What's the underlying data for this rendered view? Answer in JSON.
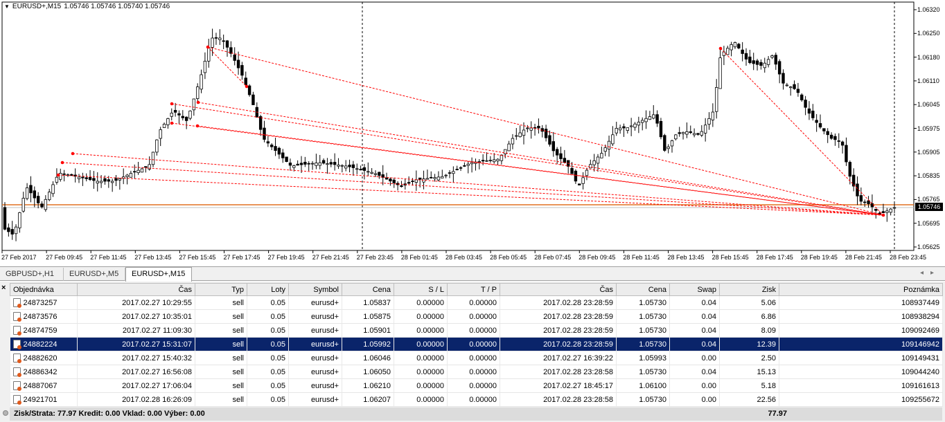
{
  "chart": {
    "symbol": "EURUSD+,M15",
    "ohlc": "1.05746 1.05746 1.05740 1.05746",
    "current_price": "1.05746",
    "price_labels": [
      "1.06320",
      "1.06250",
      "1.06180",
      "1.06110",
      "1.06045",
      "1.05975",
      "1.05905",
      "1.05835",
      "1.05765",
      "1.05695",
      "1.05625"
    ],
    "time_labels": [
      "27 Feb 2017",
      "27 Feb 09:45",
      "27 Feb 11:45",
      "27 Feb 13:45",
      "27 Feb 15:45",
      "27 Feb 17:45",
      "27 Feb 19:45",
      "27 Feb 21:45",
      "27 Feb 23:45",
      "28 Feb 01:45",
      "28 Feb 03:45",
      "28 Feb 05:45",
      "28 Feb 07:45",
      "28 Feb 09:45",
      "28 Feb 11:45",
      "28 Feb 13:45",
      "28 Feb 15:45",
      "28 Feb 17:45",
      "28 Feb 19:45",
      "28 Feb 21:45",
      "28 Feb 23:45"
    ],
    "colors": {
      "bid_line": "#c0c0c0",
      "ask_line": "#e07020",
      "trade_line": "#ff0000",
      "candle": "#000000"
    }
  },
  "tabs": [
    {
      "label": "GBPUSD+,H1",
      "active": false
    },
    {
      "label": "EURUSD+,M5",
      "active": false
    },
    {
      "label": "EURUSD+,M15",
      "active": true
    }
  ],
  "table": {
    "columns": [
      "Objednávka",
      "Čas",
      "Typ",
      "Loty",
      "Symbol",
      "Cena",
      "S / L",
      "T / P",
      "Čas",
      "Cena",
      "Swap",
      "Zisk",
      "Poznámka"
    ],
    "rows": [
      [
        "24873257",
        "2017.02.27 10:29:55",
        "sell",
        "0.05",
        "eurusd+",
        "1.05837",
        "0.00000",
        "0.00000",
        "2017.02.28 23:28:59",
        "1.05730",
        "0.04",
        "5.06",
        "108937449"
      ],
      [
        "24873576",
        "2017.02.27 10:35:01",
        "sell",
        "0.05",
        "eurusd+",
        "1.05875",
        "0.00000",
        "0.00000",
        "2017.02.28 23:28:59",
        "1.05730",
        "0.04",
        "6.86",
        "108938294"
      ],
      [
        "24874759",
        "2017.02.27 11:09:30",
        "sell",
        "0.05",
        "eurusd+",
        "1.05901",
        "0.00000",
        "0.00000",
        "2017.02.28 23:28:59",
        "1.05730",
        "0.04",
        "8.09",
        "109092469"
      ],
      [
        "24882224",
        "2017.02.27 15:31:07",
        "sell",
        "0.05",
        "eurusd+",
        "1.05992",
        "0.00000",
        "0.00000",
        "2017.02.28 23:28:59",
        "1.05730",
        "0.04",
        "12.39",
        "109146942"
      ],
      [
        "24882620",
        "2017.02.27 15:40:32",
        "sell",
        "0.05",
        "eurusd+",
        "1.06046",
        "0.00000",
        "0.00000",
        "2017.02.27 16:39:22",
        "1.05993",
        "0.00",
        "2.50",
        "109149431"
      ],
      [
        "24886342",
        "2017.02.27 16:56:08",
        "sell",
        "0.05",
        "eurusd+",
        "1.06050",
        "0.00000",
        "0.00000",
        "2017.02.28 23:28:58",
        "1.05730",
        "0.04",
        "15.13",
        "109044240"
      ],
      [
        "24887067",
        "2017.02.27 17:06:04",
        "sell",
        "0.05",
        "eurusd+",
        "1.06210",
        "0.00000",
        "0.00000",
        "2017.02.27 18:45:17",
        "1.06100",
        "0.00",
        "5.18",
        "109161613"
      ],
      [
        "24921701",
        "2017.02.28 16:26:09",
        "sell",
        "0.05",
        "eurusd+",
        "1.06207",
        "0.00000",
        "0.00000",
        "2017.02.28 23:28:58",
        "1.05730",
        "0.00",
        "22.56",
        "109255672"
      ]
    ],
    "selected_row": 3
  },
  "summary": {
    "text": "Zisk/Strata: 77.97  Kredit: 0.00  Vklad: 0.00  Výber: 0.00",
    "total": "77.97"
  }
}
